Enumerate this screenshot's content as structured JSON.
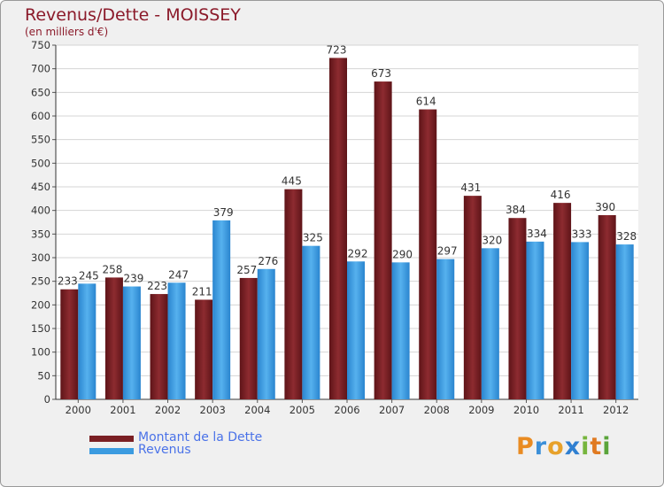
{
  "title": "Revenus/Dette - MOISSEY",
  "subtitle": "(en milliers d'€)",
  "brand": {
    "letters": [
      "P",
      "r",
      "o",
      "x",
      "i",
      "t",
      "i"
    ],
    "colors": [
      "#e98b22",
      "#3b8fd8",
      "#e7a12a",
      "#2f7fd1",
      "#76b53d",
      "#e07a21",
      "#5aa43a"
    ]
  },
  "colors": {
    "dette": "#7a1f23",
    "revenus": "#3b9be0",
    "title": "#8b1a2a",
    "legend_text": "#4a72e8",
    "background": "#f0f0f0"
  },
  "chart_data": {
    "type": "bar",
    "title": "Revenus/Dette - MOISSEY",
    "ylabel": "(en milliers d'€)",
    "ylim": [
      0,
      750
    ],
    "yticks": [
      0,
      50,
      100,
      150,
      200,
      250,
      300,
      350,
      400,
      450,
      500,
      550,
      600,
      650,
      700,
      750
    ],
    "grid": true,
    "legend_position": "bottom-left",
    "categories": [
      "2000",
      "2001",
      "2002",
      "2003",
      "2004",
      "2005",
      "2006",
      "2007",
      "2008",
      "2009",
      "2010",
      "2011",
      "2012"
    ],
    "series": [
      {
        "name": "Montant de la Dette",
        "key": "dette",
        "values": [
          233,
          258,
          223,
          211,
          257,
          445,
          723,
          673,
          614,
          431,
          384,
          416,
          390
        ]
      },
      {
        "name": "Revenus",
        "key": "revenus",
        "values": [
          245,
          239,
          247,
          379,
          276,
          325,
          292,
          290,
          297,
          320,
          334,
          333,
          328
        ]
      }
    ]
  }
}
